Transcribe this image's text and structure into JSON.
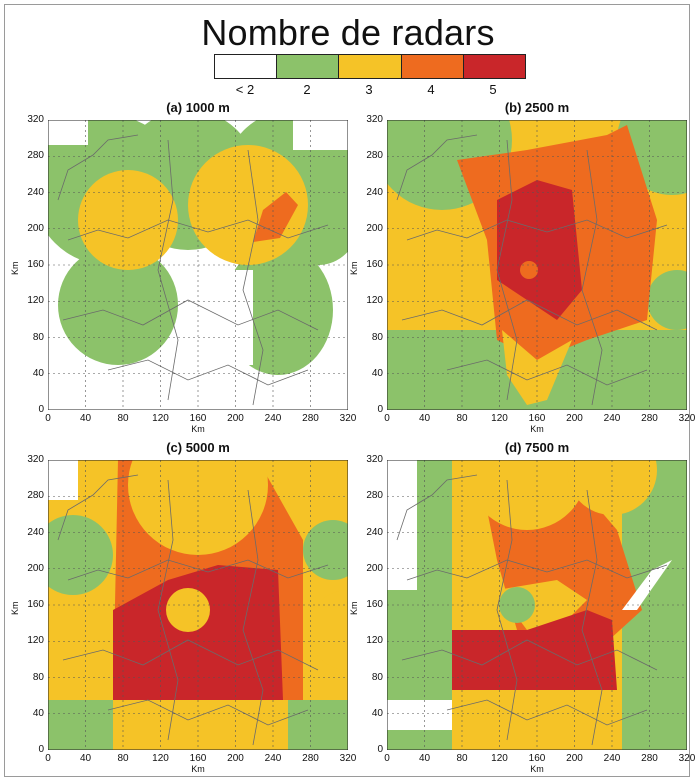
{
  "title": "Nombre de radars",
  "legend": {
    "colors": [
      "#ffffff",
      "#8cc26a",
      "#f5c327",
      "#ee6b1f",
      "#c9262a"
    ],
    "labels": [
      "< 2",
      "2",
      "3",
      "4",
      "5"
    ]
  },
  "axis": {
    "x_label": "Km",
    "y_label": "Km",
    "ticks": [
      "0",
      "40",
      "80",
      "120",
      "160",
      "200",
      "240",
      "280",
      "320"
    ]
  },
  "panels": [
    {
      "title": "(a) 1000 m"
    },
    {
      "title": "(b) 2500 m"
    },
    {
      "title": "(c) 5000 m"
    },
    {
      "title": "(d) 7500 m"
    }
  ]
}
